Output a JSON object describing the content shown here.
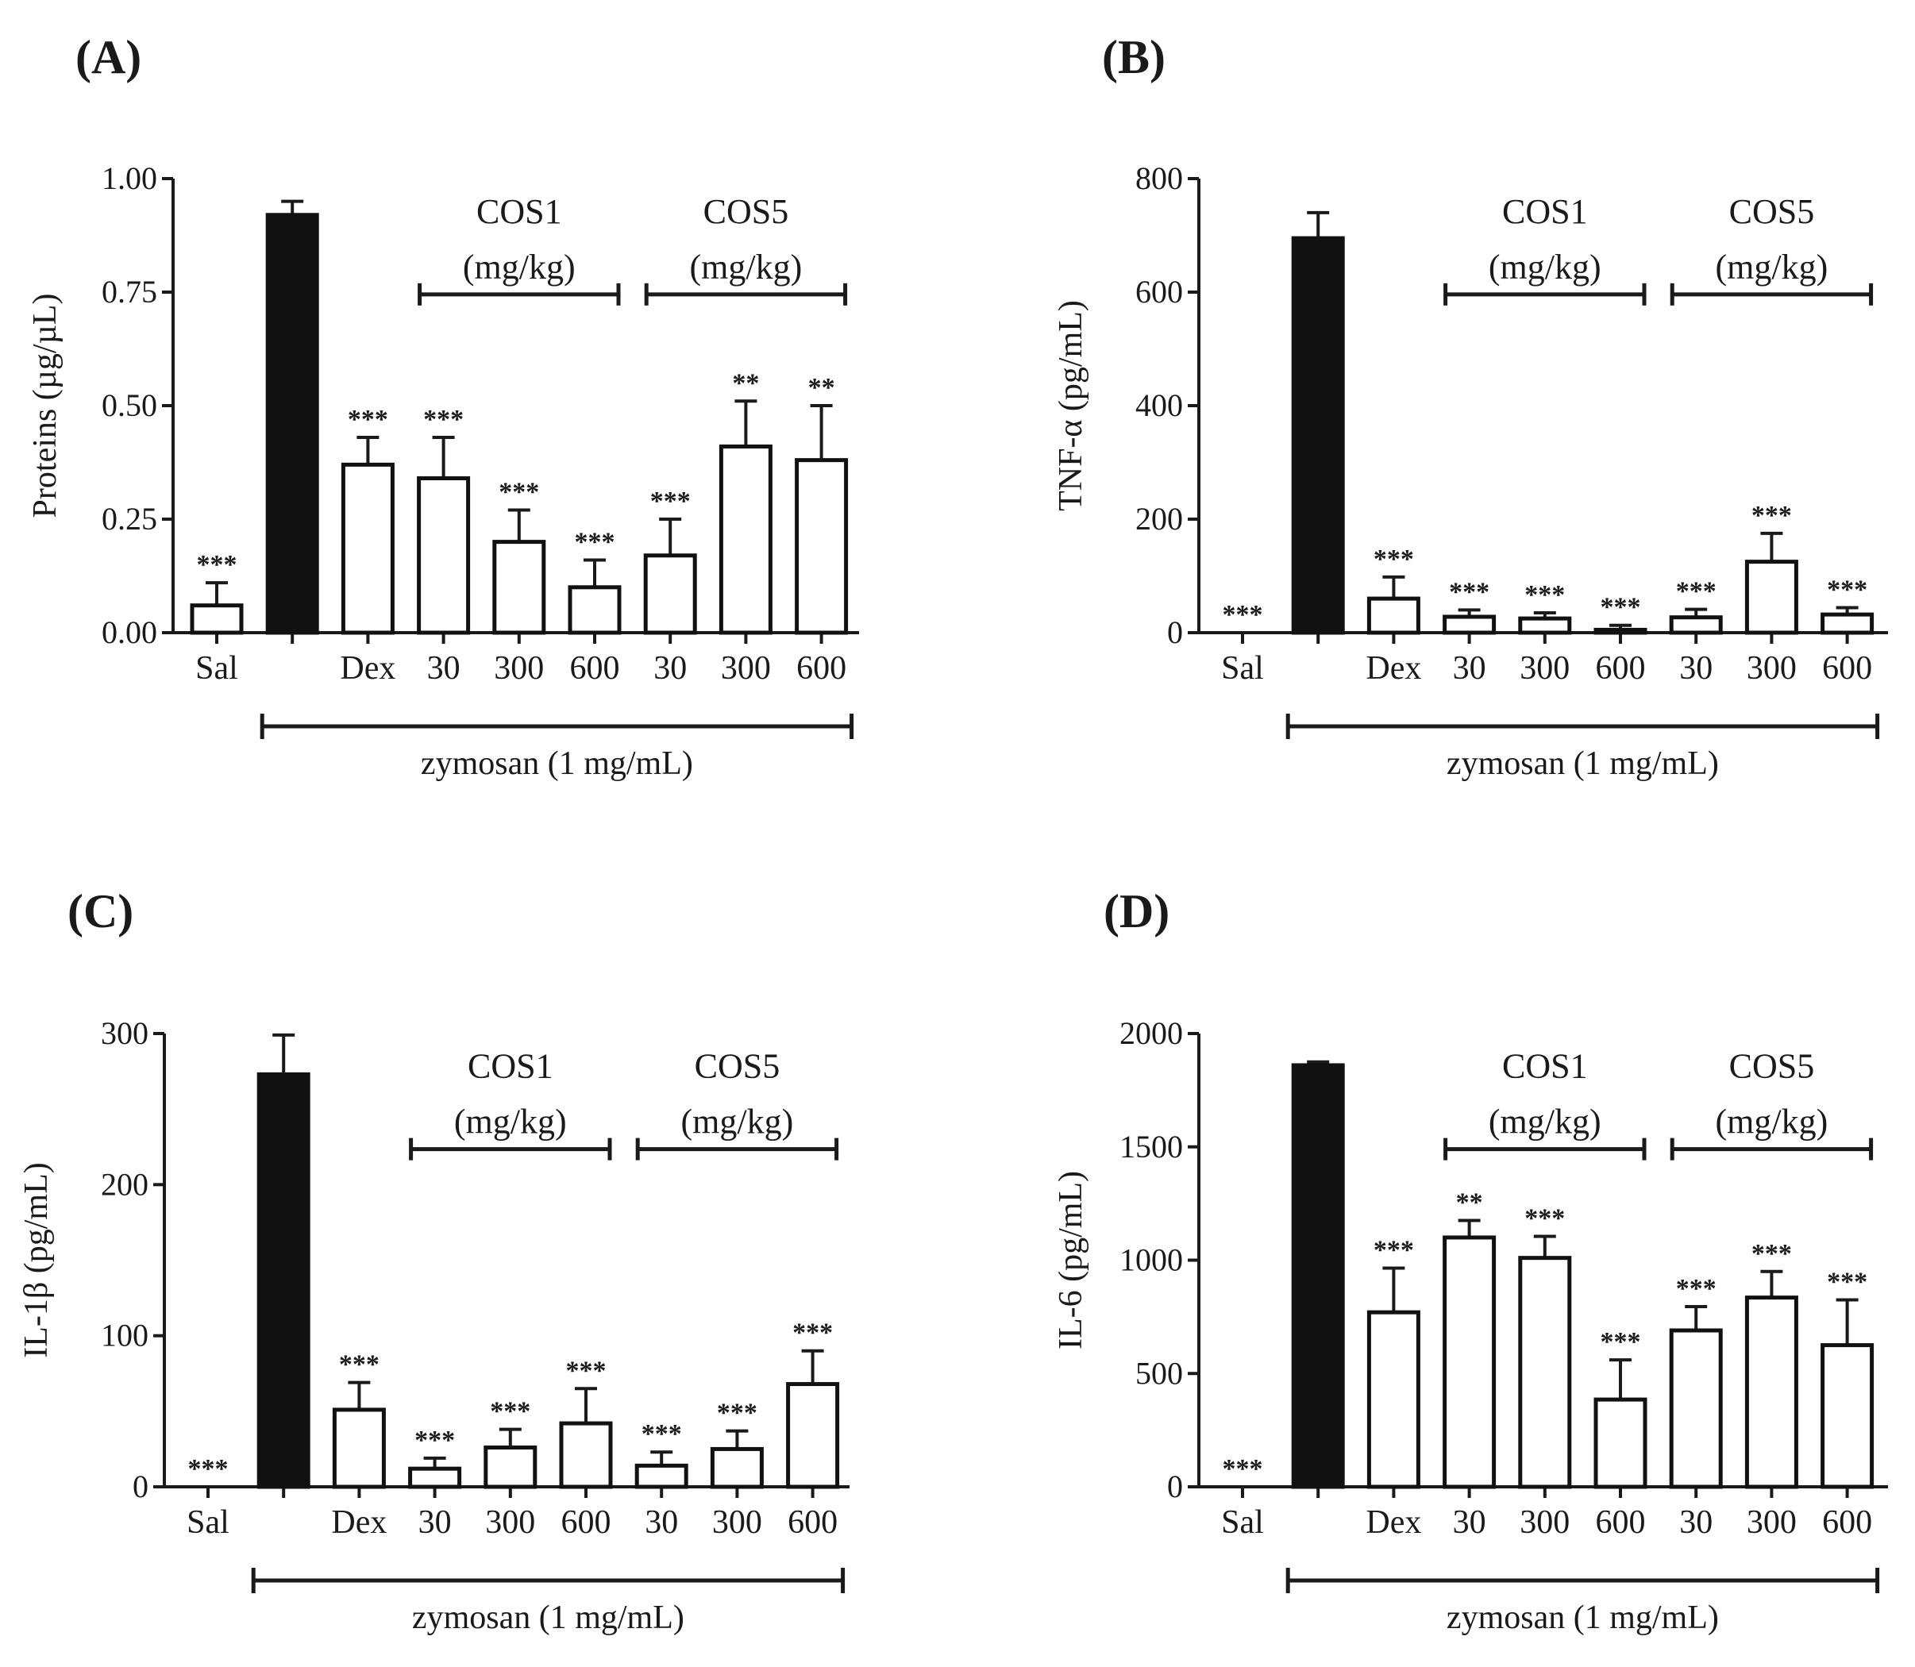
{
  "chart_data": [
    {
      "type": "bar",
      "panel": "(A)",
      "ylabel": "Proteins (µg/µL)",
      "ylim": [
        0,
        1.0
      ],
      "yticks": [
        "0.00",
        "0.25",
        "0.50",
        "0.75",
        "1.00"
      ],
      "categories": [
        "Sal",
        "",
        "Dex",
        "30",
        "300",
        "600",
        "30",
        "300",
        "600"
      ],
      "values": [
        0.06,
        0.92,
        0.37,
        0.34,
        0.2,
        0.1,
        0.17,
        0.41,
        0.38
      ],
      "errors": [
        0.05,
        0.03,
        0.06,
        0.09,
        0.07,
        0.06,
        0.08,
        0.1,
        0.12
      ],
      "significance": [
        "***",
        "",
        "***",
        "***",
        "***",
        "***",
        "***",
        "**",
        "**"
      ],
      "group_labels": [
        {
          "line1": "COS1",
          "line2": "(mg/kg)"
        },
        {
          "line1": "COS5",
          "line2": "(mg/kg)"
        }
      ],
      "xlabel": "zymosan (1 mg/mL)"
    },
    {
      "type": "bar",
      "panel": "(B)",
      "ylabel": "TNF-α (pg/mL)",
      "ylim": [
        0,
        800
      ],
      "yticks": [
        "0",
        "200",
        "400",
        "600",
        "800"
      ],
      "categories": [
        "Sal",
        "",
        "Dex",
        "30",
        "300",
        "600",
        "30",
        "300",
        "600"
      ],
      "values": [
        0,
        695,
        60,
        28,
        25,
        5,
        27,
        125,
        32
      ],
      "errors": [
        0,
        45,
        38,
        12,
        10,
        8,
        14,
        50,
        12
      ],
      "significance": [
        "***",
        "",
        "***",
        "***",
        "***",
        "***",
        "***",
        "***",
        "***"
      ],
      "group_labels": [
        {
          "line1": "COS1",
          "line2": "(mg/kg)"
        },
        {
          "line1": "COS5",
          "line2": "(mg/kg)"
        }
      ],
      "xlabel": "zymosan (1 mg/mL)"
    },
    {
      "type": "bar",
      "panel": "(C)",
      "ylabel": "IL-1β (pg/mL)",
      "ylim": [
        0,
        300
      ],
      "yticks": [
        "0",
        "100",
        "200",
        "300"
      ],
      "categories": [
        "Sal",
        "",
        "Dex",
        "30",
        "300",
        "600",
        "30",
        "300",
        "600"
      ],
      "values": [
        0,
        273,
        51,
        12,
        26,
        42,
        14,
        25,
        68
      ],
      "errors": [
        0,
        26,
        18,
        7,
        12,
        23,
        9,
        12,
        22
      ],
      "significance": [
        "***",
        "",
        "***",
        "***",
        "***",
        "***",
        "***",
        "***",
        "***"
      ],
      "group_labels": [
        {
          "line1": "COS1",
          "line2": "(mg/kg)"
        },
        {
          "line1": "COS5",
          "line2": "(mg/kg)"
        }
      ],
      "xlabel": "zymosan (1 mg/mL)"
    },
    {
      "type": "bar",
      "panel": "(D)",
      "ylabel": "IL-6 (pg/mL)",
      "ylim": [
        0,
        2000
      ],
      "yticks": [
        "0",
        "500",
        "1000",
        "1500",
        "2000"
      ],
      "categories": [
        "Sal",
        "",
        "Dex",
        "30",
        "300",
        "600",
        "30",
        "300",
        "600"
      ],
      "values": [
        0,
        1860,
        770,
        1100,
        1010,
        385,
        690,
        835,
        625
      ],
      "errors": [
        0,
        15,
        195,
        75,
        95,
        175,
        105,
        115,
        200
      ],
      "significance": [
        "***",
        "",
        "***",
        "**",
        "***",
        "***",
        "***",
        "***",
        "***"
      ],
      "group_labels": [
        {
          "line1": "COS1",
          "line2": "(mg/kg)"
        },
        {
          "line1": "COS5",
          "line2": "(mg/kg)"
        }
      ],
      "xlabel": "zymosan (1 mg/mL)"
    }
  ]
}
